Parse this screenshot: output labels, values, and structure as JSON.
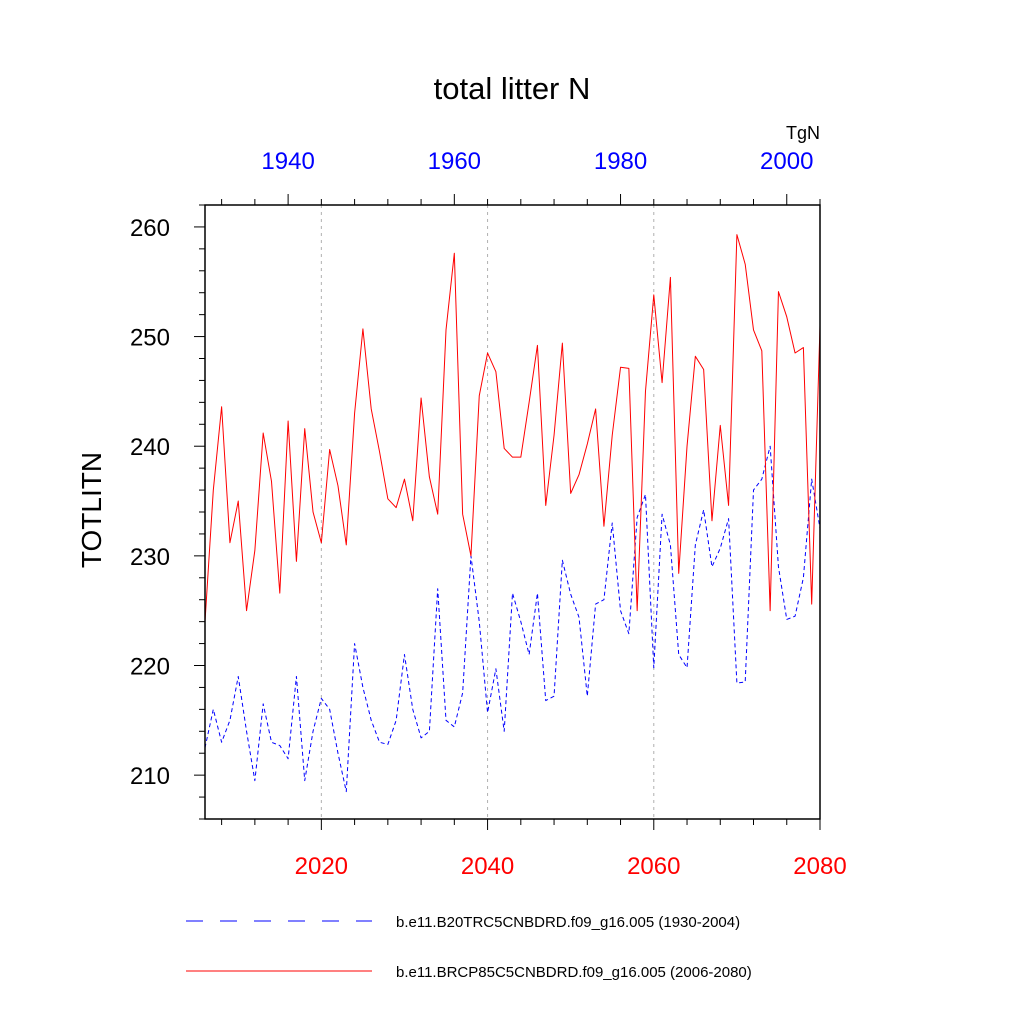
{
  "chart_data": {
    "type": "line",
    "title": "total litter N",
    "ylabel": "TOTLITN",
    "units": "TgN",
    "ylim": [
      206,
      262
    ],
    "yticks": [
      210,
      220,
      230,
      240,
      250,
      260
    ],
    "bottom_axis": {
      "range": [
        2006,
        2080
      ],
      "ticks": [
        2020,
        2040,
        2060,
        2080
      ],
      "color": "#ff0000"
    },
    "top_axis": {
      "range": [
        1930,
        2004
      ],
      "ticks": [
        1940,
        1960,
        1980,
        2000
      ],
      "color": "#0000ff"
    },
    "gridlines_x": [
      2020,
      2040,
      2060
    ],
    "series": [
      {
        "name": "b.e11.B20TRC5CNBDRD.f09_g16.005 (1930-2004)",
        "color": "#0000ff",
        "style": "dashed",
        "axis": "top",
        "x_start": 1930,
        "values": [
          212.5,
          216,
          213,
          215,
          219,
          214,
          209.5,
          216.5,
          213,
          212.7,
          211.5,
          219,
          209.5,
          214,
          217,
          216,
          212,
          208.5,
          222,
          218,
          215,
          213,
          212.8,
          215,
          221,
          216,
          213.4,
          214,
          227,
          215,
          214.4,
          217.5,
          230,
          224,
          215.7,
          219.7,
          214,
          226.6,
          224,
          221,
          226.6,
          216.8,
          217.2,
          229.6,
          226.5,
          224.4,
          217.2,
          225.6,
          226,
          233,
          225,
          222.9,
          233.5,
          235.6,
          219.8,
          233.8,
          231,
          221,
          219.8,
          231,
          234.2,
          229,
          230.7,
          233.4,
          218.4,
          218.5,
          236,
          237,
          240,
          229,
          224.2,
          224.5,
          228,
          237,
          232.5
        ]
      },
      {
        "name": "b.e11.BRCP85C5CNBDRD.f09_g16.005 (2006-2080)",
        "color": "#ff0000",
        "style": "solid",
        "axis": "bottom",
        "x_start": 2006,
        "values": [
          224,
          236,
          243.6,
          231.2,
          235,
          225,
          230.5,
          241.2,
          236.8,
          226.6,
          242.3,
          229.5,
          241.6,
          234,
          231.2,
          239.7,
          236.4,
          231,
          243,
          250.7,
          243.4,
          239.5,
          235.2,
          234.4,
          237,
          233.2,
          244.4,
          237.2,
          233.8,
          250.6,
          257.6,
          233.8,
          230,
          244.6,
          248.5,
          246.8,
          239.8,
          239,
          239,
          244,
          249.2,
          234.6,
          241,
          249.4,
          235.7,
          237.4,
          240.2,
          243.4,
          232.7,
          241,
          247.2,
          247.1,
          225,
          245,
          253.8,
          245.8,
          255.4,
          228.4,
          240,
          248.2,
          247,
          233.2,
          241.9,
          234.6,
          259.3,
          256.6,
          250.6,
          248.7,
          225,
          254.1,
          251.8,
          248.5,
          249,
          225.6,
          251
        ]
      }
    ]
  }
}
